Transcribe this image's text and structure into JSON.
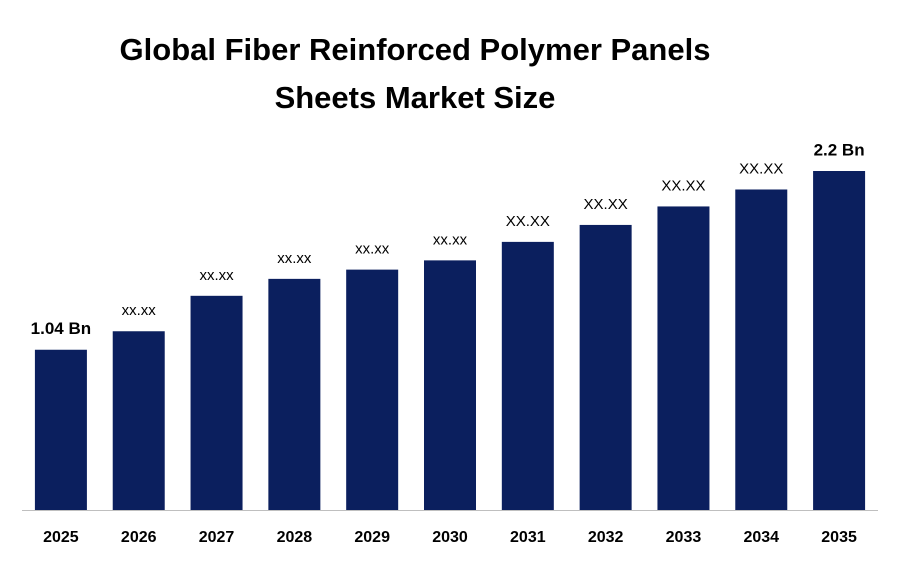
{
  "chart_data": {
    "type": "bar",
    "title": "Global Fiber Reinforced Polymer Panels Sheets Market Size",
    "categories": [
      "2025",
      "2026",
      "2027",
      "2028",
      "2029",
      "2030",
      "2031",
      "2032",
      "2033",
      "2034",
      "2035"
    ],
    "values": [
      1.04,
      1.16,
      1.39,
      1.5,
      1.56,
      1.62,
      1.74,
      1.85,
      1.97,
      2.08,
      2.2
    ],
    "value_labels": [
      "1.04 Bn",
      "xx.xx",
      "xx.xx",
      "xx.xx",
      "xx.xx",
      "xx.xx",
      "XX.XX",
      "XX.XX",
      "XX.XX",
      "XX.XX",
      "2.2 Bn"
    ],
    "color": "#0b1f5e"
  }
}
